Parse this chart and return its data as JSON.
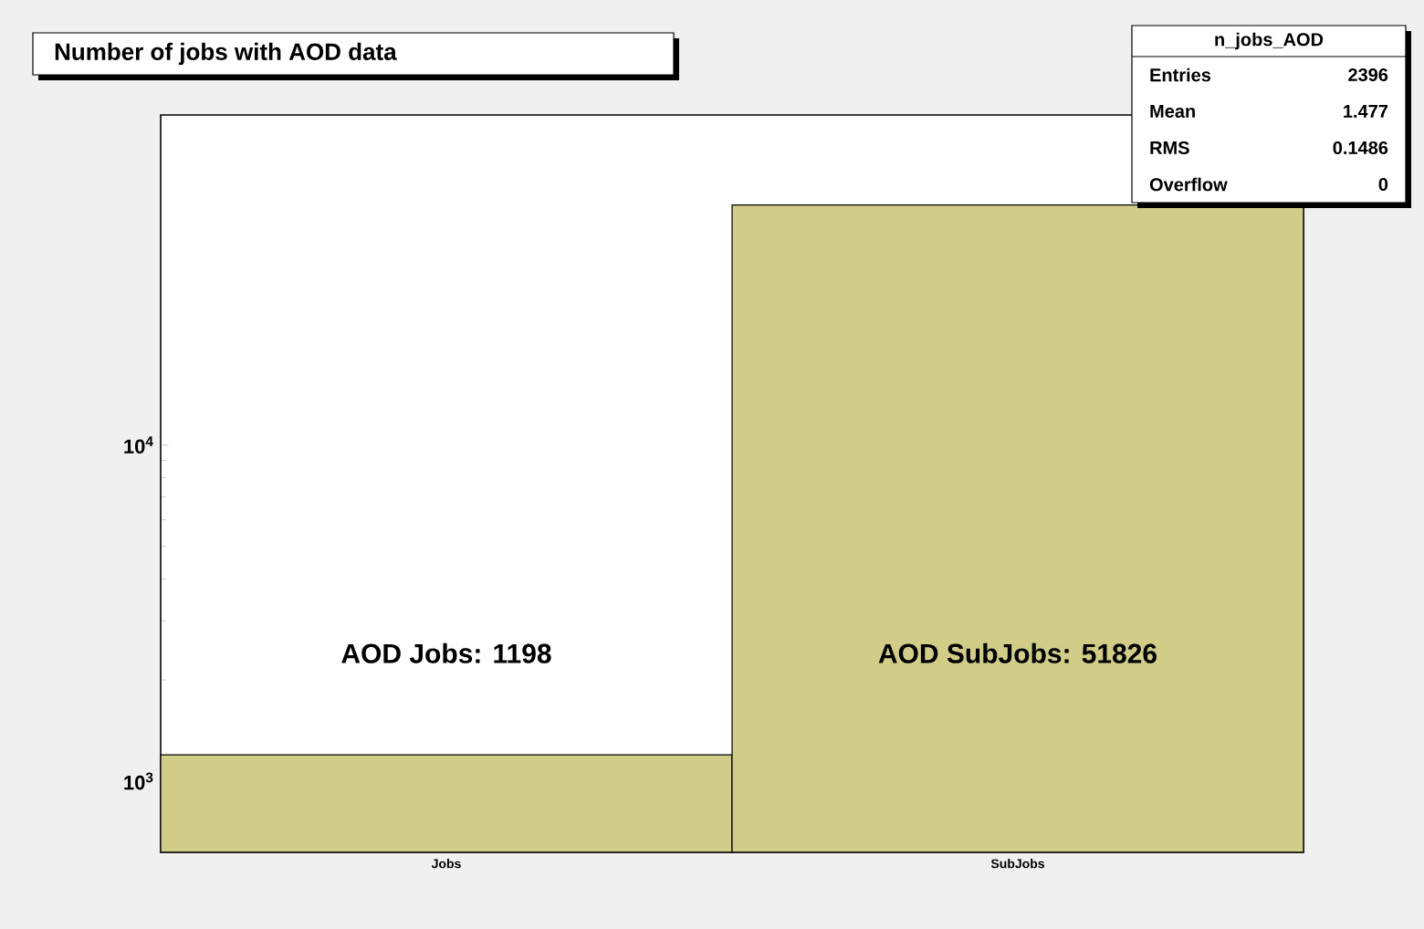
{
  "chart_data": {
    "type": "bar",
    "title": "Number of jobs with AOD data",
    "categories": [
      "Jobs",
      "SubJobs"
    ],
    "values": [
      1198,
      51826
    ],
    "color": "#d1cd89",
    "log": "y",
    "ylim": [
      614,
      96000
    ],
    "yticks": [
      {
        "value": 1000,
        "label": "10$^{3}$"
      },
      {
        "value": 10000,
        "label": "10$^{4}$"
      }
    ],
    "annotations": [
      "AOD Jobs: 1198",
      "AOD SubJobs: 51826",
      "n_jobs_AOD",
      "Entries",
      "2396",
      "Mean",
      "1.477",
      "RMS",
      "0.1486",
      "Overflow",
      "0"
    ]
  }
}
